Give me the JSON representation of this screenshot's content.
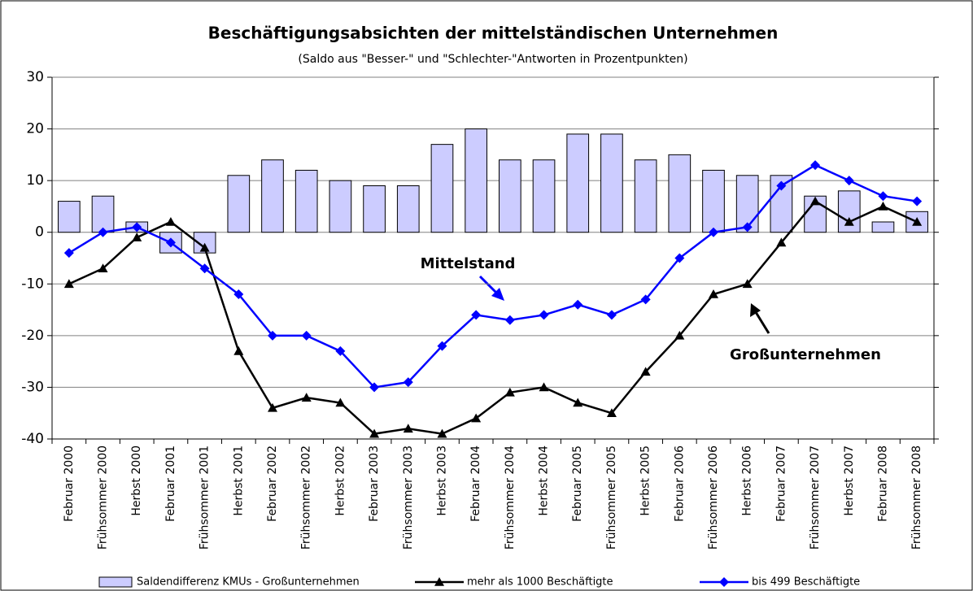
{
  "chart_data": {
    "type": "bar",
    "title": "Beschäftigungsabsichten der mittelständischen Unternehmen",
    "subtitle": "(Saldo aus \"Besser-\" und \"Schlechter-\"Antworten in Prozentpunkten)",
    "categories": [
      "Februar 2000",
      "Frühsommer 2000",
      "Herbst 2000",
      "Februar 2001",
      "Frühsommer 2001",
      "Herbst 2001",
      "Februar 2002",
      "Frühsommer 2002",
      "Herbst 2002",
      "Februar 2003",
      "Frühsommer 2003",
      "Herbst 2003",
      "Februar 2004",
      "Frühsommer 2004",
      "Herbst 2004",
      "Februar 2005",
      "Frühsommer 2005",
      "Herbst 2005",
      "Februar 2006",
      "Frühsommer 2006",
      "Herbst 2006",
      "Februar 2007",
      "Frühsommer 2007",
      "Herbst 2007",
      "Februar 2008",
      "Frühsommer 2008"
    ],
    "series": [
      {
        "name": "Saldendifferenz KMUs - Großunternehmen",
        "type": "bar",
        "color": "#ccccff",
        "values": [
          6,
          7,
          2,
          -4,
          -4,
          11,
          14,
          12,
          10,
          9,
          9,
          17,
          20,
          14,
          14,
          19,
          19,
          14,
          15,
          12,
          11,
          11,
          7,
          8,
          2,
          4
        ]
      },
      {
        "name": "mehr als 1000 Beschäftigte",
        "type": "line",
        "marker": "triangle",
        "color": "#000000",
        "values": [
          -10,
          -7,
          -1,
          2,
          -3,
          -23,
          -34,
          -32,
          -33,
          -39,
          -38,
          -39,
          -36,
          -31,
          -30,
          -33,
          -35,
          -27,
          -20,
          -12,
          -10,
          -2,
          6,
          2,
          5,
          2
        ]
      },
      {
        "name": "bis 499 Beschäftigte",
        "type": "line",
        "marker": "diamond",
        "color": "#0000ff",
        "values": [
          -4,
          0,
          1,
          -2,
          -7,
          -12,
          -20,
          -20,
          -23,
          -30,
          -29,
          -22,
          -16,
          -17,
          -16,
          -14,
          -16,
          -13,
          -5,
          0,
          1,
          9,
          13,
          10,
          7,
          6
        ]
      }
    ],
    "annotations": [
      {
        "text": "Mittelstand",
        "color": "#0000ff"
      },
      {
        "text": "Großunternehmen",
        "color": "#000000"
      }
    ],
    "ylim": [
      -40,
      30
    ],
    "yticks": [
      -40,
      -30,
      -20,
      -10,
      0,
      10,
      20,
      30
    ],
    "grid": true,
    "legend": "bottom"
  }
}
